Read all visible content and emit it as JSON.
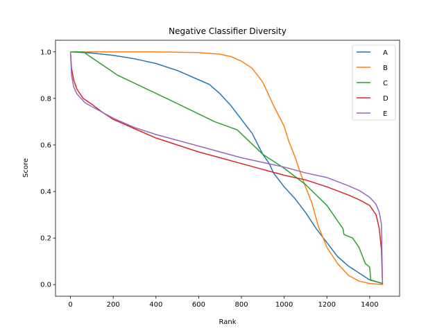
{
  "chart_data": {
    "type": "line",
    "title": "Negative Classifier Diversity",
    "xlabel": "Rank",
    "ylabel": "Score",
    "xlim": [
      -70,
      1540
    ],
    "ylim": [
      -0.05,
      1.05
    ],
    "xticks": [
      0,
      200,
      400,
      600,
      800,
      1000,
      1200,
      1400
    ],
    "yticks": [
      0.0,
      0.2,
      0.4,
      0.6,
      0.8,
      1.0
    ],
    "xtick_labels": [
      "0",
      "200",
      "400",
      "600",
      "800",
      "1000",
      "1200",
      "1400"
    ],
    "ytick_labels": [
      "0.0",
      "0.2",
      "0.4",
      "0.6",
      "0.8",
      "1.0"
    ],
    "grid": false,
    "legend_position": "top-right",
    "series": [
      {
        "name": "A",
        "color": "#1f77b4",
        "points": [
          [
            0,
            1.0
          ],
          [
            100,
            0.995
          ],
          [
            200,
            0.985
          ],
          [
            300,
            0.97
          ],
          [
            400,
            0.95
          ],
          [
            500,
            0.92
          ],
          [
            600,
            0.88
          ],
          [
            650,
            0.86
          ],
          [
            700,
            0.82
          ],
          [
            750,
            0.77
          ],
          [
            800,
            0.71
          ],
          [
            850,
            0.65
          ],
          [
            900,
            0.56
          ],
          [
            930,
            0.52
          ],
          [
            950,
            0.48
          ],
          [
            1000,
            0.42
          ],
          [
            1050,
            0.37
          ],
          [
            1100,
            0.31
          ],
          [
            1150,
            0.24
          ],
          [
            1200,
            0.18
          ],
          [
            1250,
            0.12
          ],
          [
            1300,
            0.08
          ],
          [
            1350,
            0.05
          ],
          [
            1400,
            0.02
          ],
          [
            1440,
            0.01
          ],
          [
            1460,
            0.005
          ]
        ]
      },
      {
        "name": "B",
        "color": "#ff7f0e",
        "points": [
          [
            0,
            1.0
          ],
          [
            400,
            1.0
          ],
          [
            600,
            0.997
          ],
          [
            700,
            0.99
          ],
          [
            750,
            0.98
          ],
          [
            800,
            0.96
          ],
          [
            850,
            0.93
          ],
          [
            900,
            0.87
          ],
          [
            950,
            0.77
          ],
          [
            1000,
            0.68
          ],
          [
            1020,
            0.62
          ],
          [
            1050,
            0.55
          ],
          [
            1080,
            0.47
          ],
          [
            1100,
            0.42
          ],
          [
            1130,
            0.35
          ],
          [
            1160,
            0.25
          ],
          [
            1200,
            0.16
          ],
          [
            1250,
            0.09
          ],
          [
            1300,
            0.04
          ],
          [
            1350,
            0.015
          ],
          [
            1400,
            0.005
          ],
          [
            1460,
            0.0
          ]
        ]
      },
      {
        "name": "C",
        "color": "#2ca02c",
        "points": [
          [
            0,
            1.0
          ],
          [
            60,
            1.0
          ],
          [
            220,
            0.9
          ],
          [
            450,
            0.8
          ],
          [
            675,
            0.7
          ],
          [
            780,
            0.665
          ],
          [
            900,
            0.56
          ],
          [
            1000,
            0.5
          ],
          [
            1100,
            0.43
          ],
          [
            1200,
            0.34
          ],
          [
            1275,
            0.24
          ],
          [
            1280,
            0.215
          ],
          [
            1320,
            0.2
          ],
          [
            1350,
            0.16
          ],
          [
            1380,
            0.09
          ],
          [
            1400,
            0.075
          ],
          [
            1405,
            0.02
          ],
          [
            1440,
            0.01
          ],
          [
            1460,
            0.005
          ]
        ]
      },
      {
        "name": "D",
        "color": "#d62728",
        "points": [
          [
            0,
            1.0
          ],
          [
            5,
            0.93
          ],
          [
            15,
            0.88
          ],
          [
            30,
            0.84
          ],
          [
            60,
            0.8
          ],
          [
            100,
            0.775
          ],
          [
            150,
            0.74
          ],
          [
            200,
            0.71
          ],
          [
            300,
            0.67
          ],
          [
            400,
            0.63
          ],
          [
            500,
            0.6
          ],
          [
            600,
            0.57
          ],
          [
            700,
            0.545
          ],
          [
            800,
            0.52
          ],
          [
            900,
            0.495
          ],
          [
            1000,
            0.47
          ],
          [
            1100,
            0.45
          ],
          [
            1200,
            0.42
          ],
          [
            1300,
            0.385
          ],
          [
            1350,
            0.365
          ],
          [
            1400,
            0.34
          ],
          [
            1430,
            0.3
          ],
          [
            1445,
            0.24
          ],
          [
            1455,
            0.15
          ],
          [
            1460,
            0.0
          ]
        ]
      },
      {
        "name": "E",
        "color": "#9467bd",
        "points": [
          [
            0,
            1.0
          ],
          [
            5,
            0.9
          ],
          [
            15,
            0.85
          ],
          [
            30,
            0.82
          ],
          [
            70,
            0.78
          ],
          [
            100,
            0.765
          ],
          [
            150,
            0.74
          ],
          [
            200,
            0.715
          ],
          [
            300,
            0.675
          ],
          [
            400,
            0.645
          ],
          [
            500,
            0.62
          ],
          [
            600,
            0.595
          ],
          [
            700,
            0.57
          ],
          [
            800,
            0.545
          ],
          [
            900,
            0.525
          ],
          [
            1000,
            0.505
          ],
          [
            1100,
            0.48
          ],
          [
            1200,
            0.46
          ],
          [
            1300,
            0.425
          ],
          [
            1350,
            0.405
          ],
          [
            1400,
            0.375
          ],
          [
            1430,
            0.345
          ],
          [
            1445,
            0.31
          ],
          [
            1455,
            0.26
          ],
          [
            1460,
            0.0
          ]
        ]
      }
    ]
  }
}
